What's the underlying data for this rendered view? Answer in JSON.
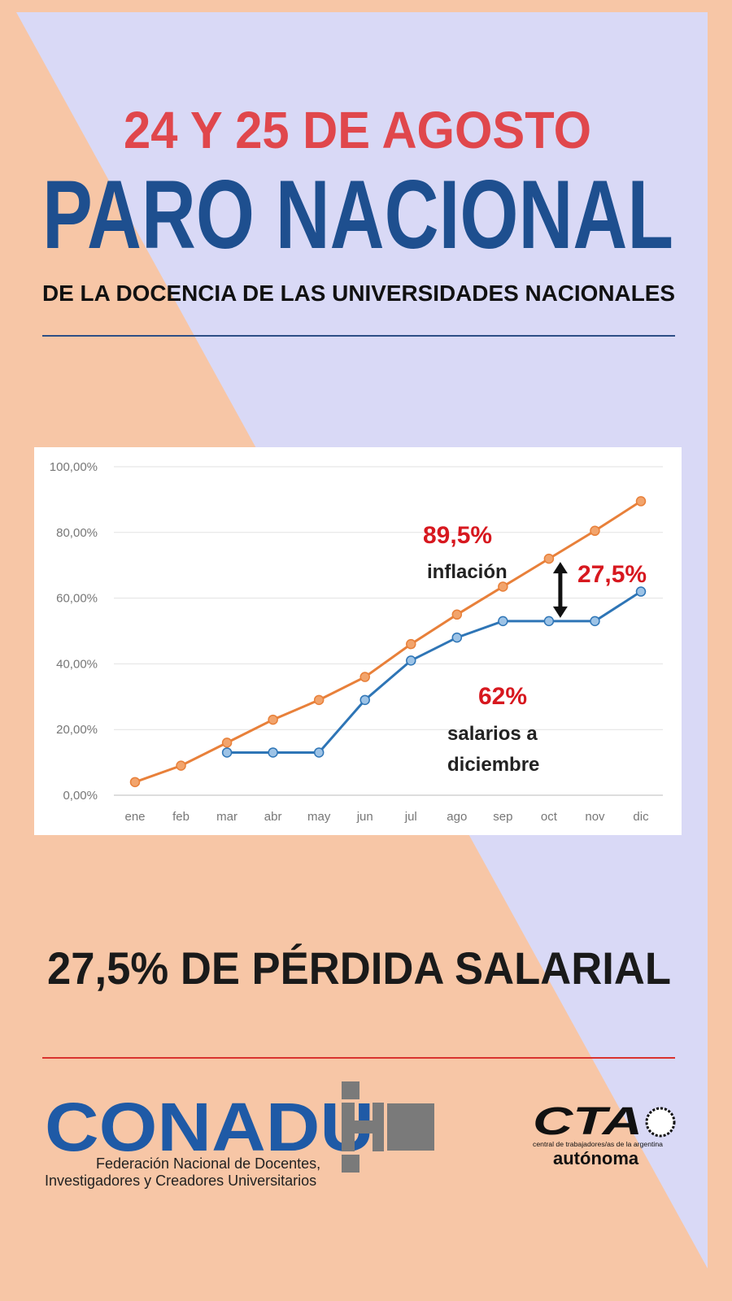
{
  "header": {
    "date": "24 Y 25 DE AGOSTO",
    "title": "PARO NACIONAL",
    "subtitle": "DE LA DOCENCIA DE LAS UNIVERSIDADES NACIONALES"
  },
  "chart_data": {
    "type": "line",
    "categories": [
      "ene",
      "feb",
      "mar",
      "abr",
      "may",
      "jun",
      "jul",
      "ago",
      "sep",
      "oct",
      "nov",
      "dic"
    ],
    "series": [
      {
        "name": "inflación",
        "color": "#e8803a",
        "values": [
          4,
          9,
          16,
          23,
          29,
          36,
          46,
          55,
          63.5,
          72,
          80.5,
          89.5
        ],
        "value_labels": [
          null,
          null,
          null,
          null,
          null,
          null,
          null,
          null,
          null,
          null,
          null,
          "89,5%"
        ]
      },
      {
        "name": "salarios a diciembre",
        "color": "#2e75b6",
        "values": [
          null,
          null,
          13,
          13,
          13,
          29,
          41,
          48,
          53,
          53,
          53,
          62
        ],
        "value_labels": [
          null,
          null,
          null,
          null,
          null,
          null,
          null,
          null,
          null,
          null,
          null,
          "62%"
        ]
      }
    ],
    "ylim": [
      0,
      100
    ],
    "yticks": [
      {
        "value": 0,
        "label": "0,00%"
      },
      {
        "value": 20,
        "label": "20,00%"
      },
      {
        "value": 40,
        "label": "40,00%"
      },
      {
        "value": 60,
        "label": "60,00%"
      },
      {
        "value": 80,
        "label": "80,00%"
      },
      {
        "value": 100,
        "label": "100,00%"
      }
    ],
    "grid": true,
    "annotations": [
      {
        "text": "27,5%"
      }
    ]
  },
  "footer": {
    "headline": "27,5% DE PÉRDIDA SALARIAL",
    "logo_left": {
      "name": "CONADU",
      "tagline_1": "Federación Nacional de Docentes,",
      "tagline_2": "Investigadores y Creadores Universitarios"
    },
    "logo_right": {
      "name": "CTA",
      "tagline": "central de trabajadores/as de la argentina",
      "sub": "autónoma"
    }
  }
}
